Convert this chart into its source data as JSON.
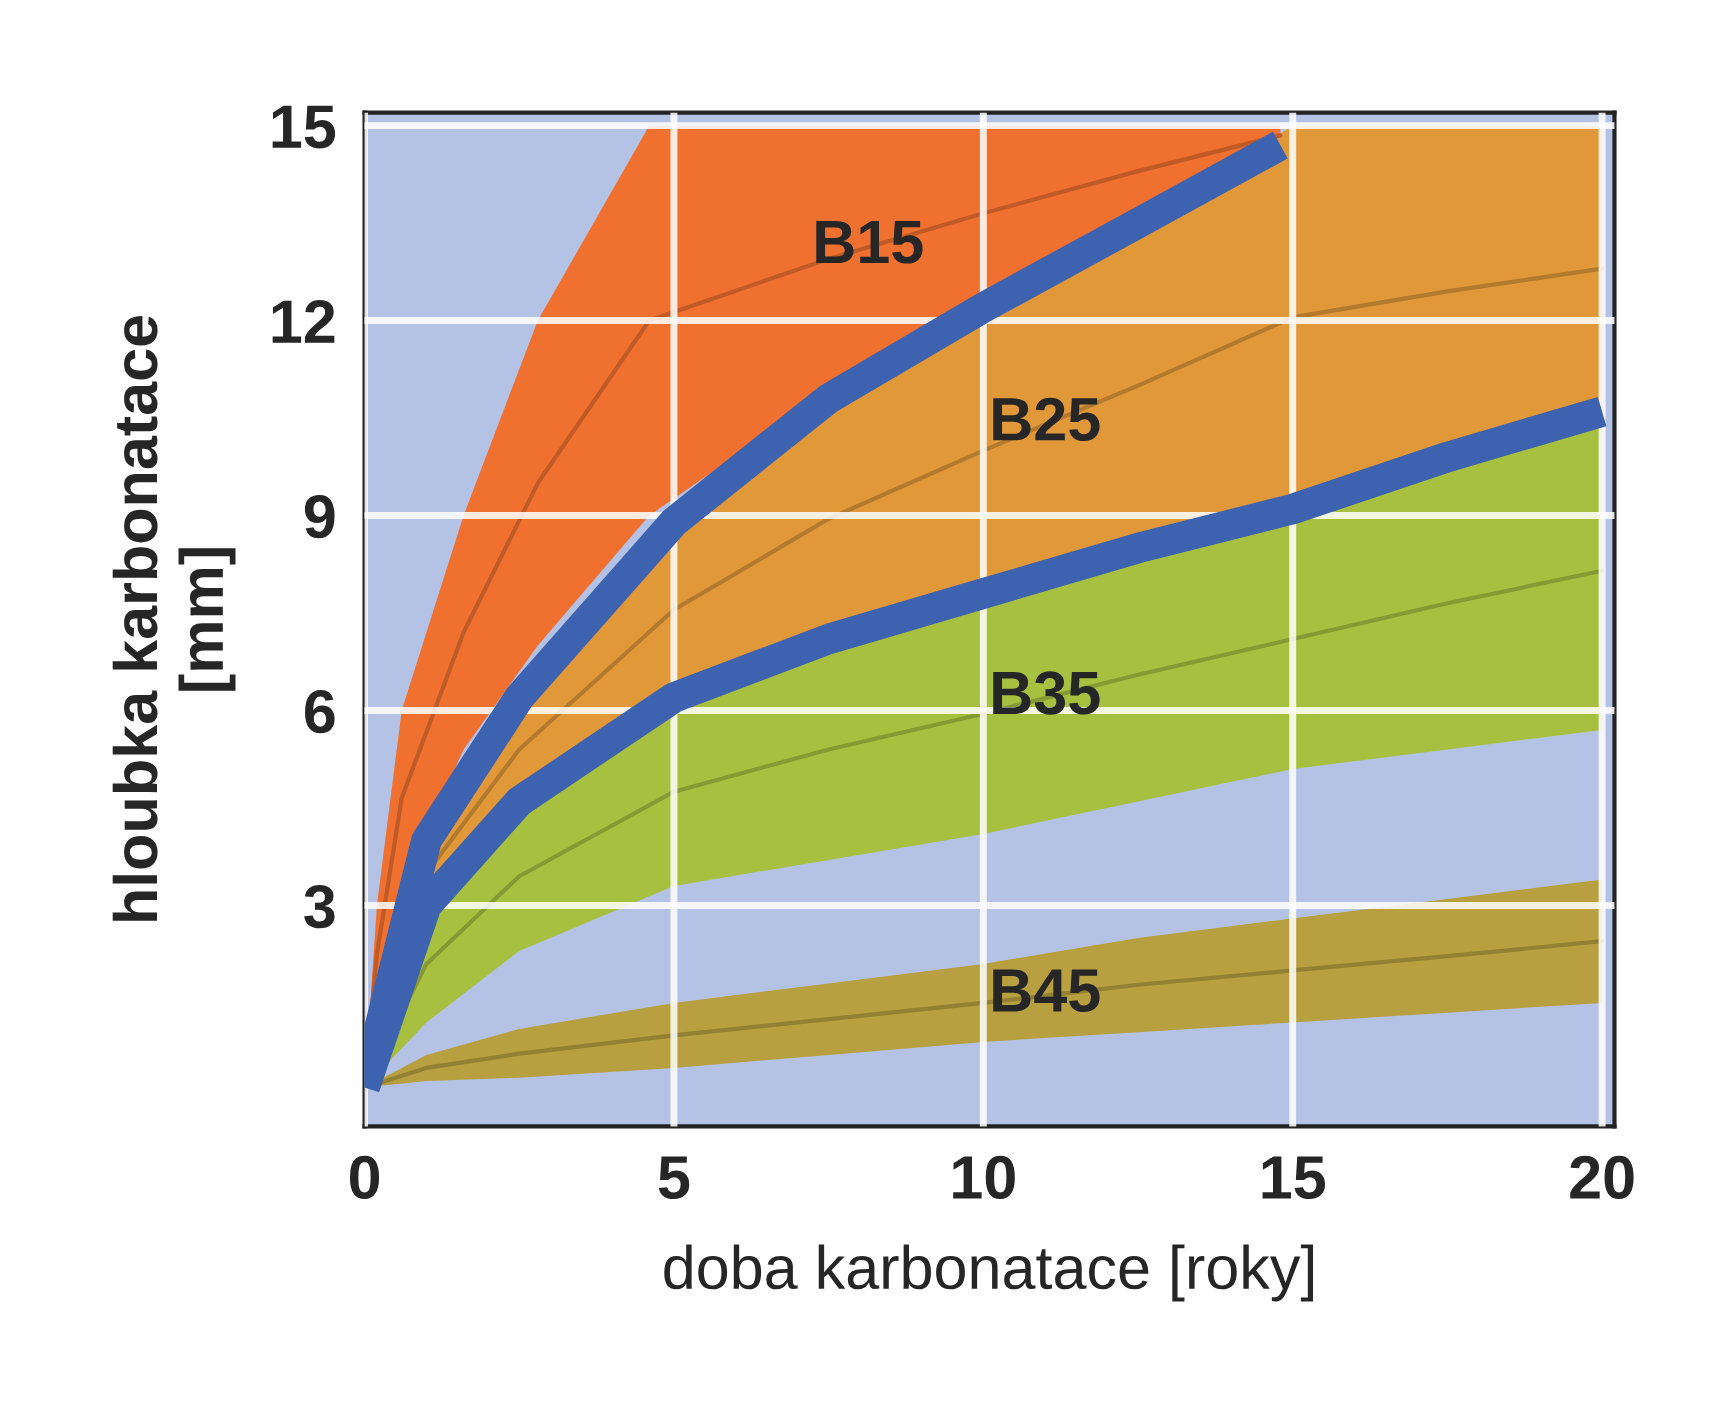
{
  "chart_data": {
    "type": "line",
    "xlabel": "doba karbonatace [roky]",
    "ylabel": "hloubka karbonatace\n[mm]",
    "xlim": [
      0,
      20.2
    ],
    "ylim": [
      -0.4,
      15.2
    ],
    "xticks": [
      0,
      5,
      10,
      15,
      20
    ],
    "yticks": [
      3,
      6,
      9,
      12,
      15
    ],
    "grid": true,
    "series": [
      {
        "name": "B15",
        "color": "#c05a26",
        "x": [
          0,
          0.2,
          0.6,
          1.6,
          2.8,
          4.6,
          7.5,
          10,
          12.5,
          14.8
        ],
        "values": [
          0.2,
          2.25,
          4.65,
          7.2,
          9.5,
          12,
          12.95,
          13.65,
          14.3,
          14.85
        ],
        "lower": [
          0.2,
          1.5,
          3.3,
          5.4,
          7,
          9.0,
          10.9,
          12.3,
          13.6,
          14.7
        ],
        "upper": [
          0.2,
          3,
          6,
          9,
          12,
          15,
          15,
          15,
          15,
          15
        ]
      },
      {
        "name": "B25",
        "color": "#b37a2e",
        "x": [
          0,
          1,
          2.5,
          5,
          7.5,
          10,
          12.5,
          15,
          17.5,
          20
        ],
        "values": [
          0.2,
          3.5,
          5.4,
          7.55,
          8.95,
          10,
          11,
          12.05,
          12.45,
          12.8
        ],
        "lower": [
          0.2,
          3.0,
          4.6,
          6.2,
          7.1,
          7.8,
          8.5,
          9.1,
          9.9,
          10.6
        ],
        "upper": [
          0.2,
          4.0,
          6.2,
          8.9,
          10.8,
          12.2,
          13.5,
          15,
          15,
          15
        ]
      },
      {
        "name": "B35",
        "color": "#869a33",
        "x": [
          0,
          1,
          2.5,
          5,
          7.5,
          10,
          12.5,
          15,
          17.5,
          20
        ],
        "values": [
          0.2,
          2.1,
          3.45,
          4.75,
          5.4,
          5.95,
          6.55,
          7.1,
          7.65,
          8.15
        ],
        "lower": [
          0.2,
          1.2,
          2.3,
          3.3,
          3.7,
          4.1,
          4.6,
          5.1,
          5.4,
          5.7
        ],
        "upper": [
          0.2,
          3.0,
          4.6,
          6.2,
          7.1,
          7.8,
          8.5,
          9.1,
          9.9,
          10.6
        ]
      },
      {
        "name": "B45",
        "color": "#938033",
        "x": [
          0,
          1,
          2.5,
          5,
          7.5,
          10,
          12.5,
          15,
          17.5,
          20
        ],
        "values": [
          0.2,
          0.5,
          0.72,
          1.0,
          1.25,
          1.5,
          1.78,
          2.0,
          2.22,
          2.45
        ],
        "lower": [
          0.2,
          0.3,
          0.35,
          0.5,
          0.7,
          0.9,
          1.05,
          1.2,
          1.35,
          1.5
        ],
        "upper": [
          0.2,
          0.7,
          1.1,
          1.5,
          1.8,
          2.1,
          2.5,
          2.8,
          3.1,
          3.4
        ]
      },
      {
        "color": "#3d62b0",
        "x": [
          0,
          1,
          2.5,
          5,
          7.5,
          10,
          12.5,
          14.8
        ],
        "values": [
          0.2,
          4.0,
          6.2,
          8.9,
          10.8,
          12.2,
          13.5,
          14.7
        ]
      },
      {
        "color": "#3d62b0",
        "x": [
          0,
          1,
          2.5,
          5,
          7.5,
          10,
          12.5,
          15,
          17.5,
          20
        ],
        "values": [
          0.2,
          3.0,
          4.6,
          6.2,
          7.1,
          7.8,
          8.5,
          9.1,
          9.9,
          10.6
        ]
      }
    ]
  }
}
